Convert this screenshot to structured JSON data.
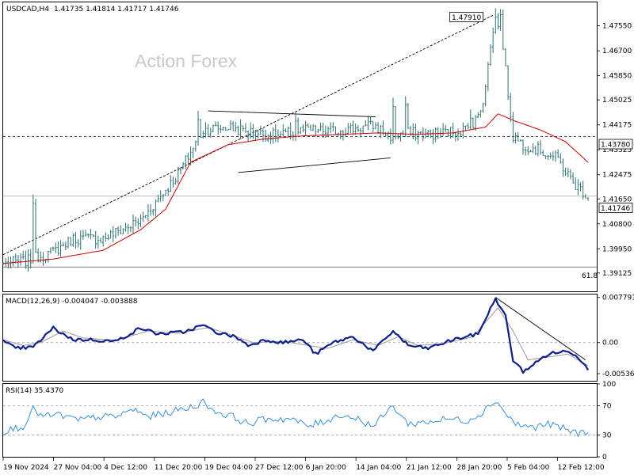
{
  "header": {
    "symbol": "USDCAD,H4",
    "ohlc": "1.41735 1.41814 1.41717 1.41746"
  },
  "watermark": "Action Forex",
  "colors": {
    "candle": "#2f6f73",
    "ma": "#cc0000",
    "macd_line": "#0d1f8c",
    "macd_signal": "#9a9a9a",
    "rsi": "#3a8fd6",
    "grid_dash": "#999999",
    "border": "#000000"
  },
  "chart_data": [
    {
      "type": "candlestick",
      "pane": "price",
      "ylim": [
        1.385,
        1.4835
      ],
      "y_ticks": [
        "1.47550",
        "1.46700",
        "1.45850",
        "1.45025",
        "1.44175",
        "1.43325",
        "1.42475",
        "1.41650",
        "1.40800",
        "1.39950",
        "1.39125"
      ],
      "price_labels": {
        "high": "1.47910",
        "hline": "1.43780",
        "current": "1.41746"
      },
      "fib_label": "61.8",
      "fib_level": 1.3933,
      "hline_level": 1.4378,
      "current_level": 1.41746,
      "high_level": 1.4791,
      "close_anchors": [
        [
          0,
          1.3945
        ],
        [
          10,
          1.3955
        ],
        [
          20,
          1.3985
        ],
        [
          28,
          1.403
        ],
        [
          40,
          1.403
        ],
        [
          55,
          1.409
        ],
        [
          70,
          1.425
        ],
        [
          80,
          1.44
        ],
        [
          90,
          1.441
        ],
        [
          100,
          1.439
        ],
        [
          110,
          1.438
        ],
        [
          120,
          1.44
        ],
        [
          130,
          1.4395
        ],
        [
          140,
          1.4405
        ],
        [
          148,
          1.4415
        ],
        [
          155,
          1.438
        ],
        [
          162,
          1.439
        ],
        [
          170,
          1.4385
        ],
        [
          180,
          1.4395
        ],
        [
          188,
          1.441
        ],
        [
          192,
          1.45
        ],
        [
          196,
          1.474
        ],
        [
          199,
          1.478
        ],
        [
          201,
          1.46
        ],
        [
          204,
          1.438
        ],
        [
          208,
          1.435
        ],
        [
          215,
          1.433
        ],
        [
          222,
          1.43
        ],
        [
          228,
          1.422
        ],
        [
          234,
          1.4175
        ]
      ],
      "ma_anchors": [
        [
          0,
          1.3945
        ],
        [
          20,
          1.396
        ],
        [
          40,
          1.399
        ],
        [
          55,
          1.406
        ],
        [
          65,
          1.413
        ],
        [
          75,
          1.429
        ],
        [
          90,
          1.435
        ],
        [
          105,
          1.437
        ],
        [
          120,
          1.438
        ],
        [
          135,
          1.4385
        ],
        [
          150,
          1.439
        ],
        [
          165,
          1.4385
        ],
        [
          180,
          1.439
        ],
        [
          193,
          1.441
        ],
        [
          198,
          1.4455
        ],
        [
          205,
          1.443
        ],
        [
          215,
          1.44
        ],
        [
          225,
          1.436
        ],
        [
          234,
          1.429
        ]
      ],
      "spikes": [
        [
          12,
          1.418
        ],
        [
          78,
          1.4465
        ],
        [
          117,
          1.446
        ],
        [
          156,
          1.451
        ],
        [
          161,
          1.4515
        ],
        [
          187,
          1.447
        ],
        [
          197,
          1.4815
        ]
      ],
      "trendlines": [
        {
          "from": [
            0,
            1.3975
          ],
          "to": [
            196,
            1.4791
          ],
          "style": "dashed"
        },
        {
          "from": [
            82,
            1.4465
          ],
          "to": [
            149,
            1.4445
          ],
          "style": "solid"
        },
        {
          "from": [
            94,
            1.4255
          ],
          "to": [
            155,
            1.4305
          ],
          "style": "solid"
        }
      ]
    },
    {
      "type": "line",
      "pane": "macd",
      "title": "MACD(12,26,9) -0.004047 -0.003888",
      "ylim": [
        -0.0066,
        0.0083
      ],
      "y_ticks": [
        "0.007791",
        "0.00",
        "-0.005367"
      ],
      "y_tick_values": [
        0.007791,
        0.0,
        -0.005367
      ],
      "series": [
        {
          "key": "macd",
          "anchors": [
            [
              0,
              0.0002
            ],
            [
              5,
              -0.001
            ],
            [
              12,
              -0.0008
            ],
            [
              20,
              0.0025
            ],
            [
              28,
              0.0005
            ],
            [
              35,
              0.0005
            ],
            [
              45,
              0.0002
            ],
            [
              55,
              0.0025
            ],
            [
              62,
              0.0015
            ],
            [
              72,
              0.0018
            ],
            [
              80,
              0.003
            ],
            [
              85,
              0.0018
            ],
            [
              93,
              0.001
            ],
            [
              98,
              -0.0005
            ],
            [
              105,
              0.0005
            ],
            [
              112,
              0.0
            ],
            [
              120,
              0.0005
            ],
            [
              125,
              -0.002
            ],
            [
              132,
              0.0
            ],
            [
              140,
              0.001
            ],
            [
              148,
              -0.0015
            ],
            [
              156,
              0.002
            ],
            [
              162,
              -0.0005
            ],
            [
              170,
              -0.001
            ],
            [
              180,
              0.0005
            ],
            [
              190,
              0.0015
            ],
            [
              197,
              0.0076
            ],
            [
              201,
              0.0045
            ],
            [
              204,
              -0.003
            ],
            [
              208,
              -0.005
            ],
            [
              213,
              -0.0035
            ],
            [
              218,
              -0.002
            ],
            [
              224,
              -0.0015
            ],
            [
              229,
              -0.002
            ],
            [
              234,
              -0.0045
            ]
          ]
        },
        {
          "key": "signal",
          "anchors": [
            [
              0,
              0.0005
            ],
            [
              8,
              -0.0005
            ],
            [
              15,
              0.0
            ],
            [
              24,
              0.002
            ],
            [
              32,
              0.0008
            ],
            [
              45,
              0.0004
            ],
            [
              58,
              0.002
            ],
            [
              70,
              0.0016
            ],
            [
              82,
              0.0026
            ],
            [
              90,
              0.0015
            ],
            [
              100,
              0.0
            ],
            [
              112,
              0.0002
            ],
            [
              122,
              -0.0005
            ],
            [
              130,
              -0.001
            ],
            [
              140,
              0.0005
            ],
            [
              150,
              -0.0005
            ],
            [
              158,
              0.001
            ],
            [
              166,
              -0.0005
            ],
            [
              176,
              -0.0002
            ],
            [
              188,
              0.001
            ],
            [
              198,
              0.006
            ],
            [
              204,
              0.002
            ],
            [
              210,
              -0.003
            ],
            [
              218,
              -0.0025
            ],
            [
              226,
              -0.002
            ],
            [
              234,
              -0.004
            ]
          ]
        }
      ],
      "trendline": {
        "from": [
          197,
          0.0078
        ],
        "to": [
          233,
          -0.003
        ]
      }
    },
    {
      "type": "line",
      "pane": "rsi",
      "title": "RSI(14) 35.4370",
      "ylim": [
        0,
        100
      ],
      "y_ticks": [
        "100",
        "70",
        "30",
        "0"
      ],
      "y_tick_values": [
        100,
        70,
        30,
        0
      ],
      "levels": [
        70,
        30
      ],
      "anchors": [
        [
          0,
          35
        ],
        [
          8,
          42
        ],
        [
          12,
          65
        ],
        [
          16,
          55
        ],
        [
          22,
          58
        ],
        [
          30,
          50
        ],
        [
          38,
          55
        ],
        [
          45,
          55
        ],
        [
          52,
          65
        ],
        [
          58,
          55
        ],
        [
          65,
          60
        ],
        [
          75,
          68
        ],
        [
          80,
          75
        ],
        [
          85,
          62
        ],
        [
          92,
          55
        ],
        [
          98,
          45
        ],
        [
          105,
          52
        ],
        [
          115,
          52
        ],
        [
          122,
          42
        ],
        [
          128,
          48
        ],
        [
          135,
          58
        ],
        [
          142,
          52
        ],
        [
          148,
          42
        ],
        [
          156,
          70
        ],
        [
          162,
          45
        ],
        [
          170,
          48
        ],
        [
          178,
          52
        ],
        [
          186,
          50
        ],
        [
          192,
          62
        ],
        [
          197,
          78
        ],
        [
          201,
          60
        ],
        [
          205,
          45
        ],
        [
          212,
          40
        ],
        [
          218,
          45
        ],
        [
          225,
          38
        ],
        [
          230,
          32
        ],
        [
          234,
          35
        ]
      ]
    }
  ],
  "x_axis": {
    "labels": [
      "19 Nov 2024",
      "27 Nov 04:00",
      "4 Dec 12:00",
      "11 Dec 20:00",
      "19 Dec 04:00",
      "27 Dec 12:00",
      "6 Jan 20:00",
      "14 Jan 04:00",
      "21 Jan 12:00",
      "28 Jan 20:00",
      "5 Feb 04:00",
      "12 Feb 12:00"
    ]
  }
}
